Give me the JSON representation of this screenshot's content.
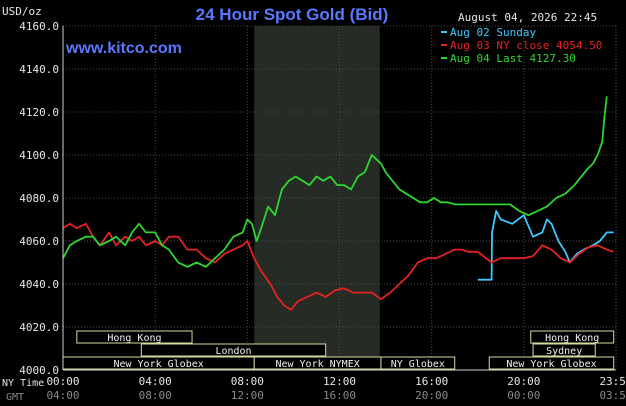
{
  "chart_data": {
    "type": "line",
    "title": "24 Hour Spot Gold (Bid)",
    "watermark": "www.kitco.com",
    "timestamp": "August 04, 2026 22:45",
    "ylabel": "USD/oz",
    "ylim": [
      4000,
      4160
    ],
    "yticks": [
      "4160.0",
      "4140.0",
      "4120.0",
      "4100.0",
      "4080.0",
      "4060.0",
      "4040.0",
      "4020.0",
      "4000.0"
    ],
    "xlim": [
      0,
      24
    ],
    "xticks_ny": [
      "00:00",
      "04:00",
      "08:00",
      "12:00",
      "16:00",
      "20:00",
      "23:59"
    ],
    "xticks_gmt": [
      "04:00",
      "08:00",
      "12:00",
      "16:00",
      "20:00",
      "00:00",
      "03:59"
    ],
    "x_row_labels": {
      "ny": "NY Time",
      "gmt": "GMT"
    },
    "shaded_range": [
      8.3,
      13.75
    ],
    "legend": [
      {
        "label": "Aug 02 Sunday",
        "color": "#3ec8ff"
      },
      {
        "label": "Aug 03 NY close 4054.50",
        "color": "#e52222"
      },
      {
        "label": "Aug 04 Last 4127.30",
        "color": "#2fd52f"
      }
    ],
    "series": [
      {
        "name": "Aug 02 Sunday",
        "color": "#3ec8ff",
        "x": [
          18.0,
          18.6,
          18.62,
          18.8,
          19.0,
          19.5,
          20.0,
          20.4,
          20.8,
          21.0,
          21.2,
          21.5,
          21.8,
          22.0,
          22.3,
          22.6,
          23.0,
          23.3,
          23.6,
          23.9
        ],
        "y": [
          4042,
          4042,
          4064,
          4074,
          4070,
          4068,
          4072,
          4062,
          4064,
          4070,
          4068,
          4060,
          4055,
          4050,
          4054,
          4056,
          4058,
          4060,
          4064,
          4064
        ]
      },
      {
        "name": "Aug 03 NY close 4054.50",
        "color": "#e52222",
        "x": [
          0.0,
          0.3,
          0.6,
          1.0,
          1.3,
          1.6,
          2.0,
          2.3,
          2.7,
          3.0,
          3.3,
          3.6,
          4.0,
          4.3,
          4.6,
          5.0,
          5.4,
          5.8,
          6.2,
          6.6,
          7.0,
          7.4,
          7.8,
          8.0,
          8.3,
          8.6,
          9.0,
          9.3,
          9.6,
          9.9,
          10.2,
          10.6,
          11.0,
          11.4,
          11.8,
          12.2,
          12.6,
          13.0,
          13.4,
          13.8,
          14.2,
          14.6,
          15.0,
          15.4,
          15.8,
          16.2,
          16.6,
          17.0,
          17.3,
          17.6,
          18.0,
          18.6,
          19.0,
          19.5,
          20.0,
          20.4,
          20.8,
          21.2,
          21.6,
          22.0,
          22.4,
          22.8,
          23.2,
          23.6,
          23.9
        ],
        "y": [
          4066,
          4068,
          4066,
          4068,
          4062,
          4058,
          4064,
          4058,
          4062,
          4060,
          4062,
          4058,
          4060,
          4058,
          4062,
          4062,
          4056,
          4056,
          4052,
          4050,
          4054,
          4056,
          4058,
          4060,
          4052,
          4046,
          4040,
          4034,
          4030,
          4028,
          4032,
          4034,
          4036,
          4034,
          4037,
          4038,
          4036,
          4036,
          4036,
          4033,
          4036,
          4040,
          4044,
          4050,
          4052,
          4052,
          4054,
          4056,
          4056,
          4055,
          4055,
          4050,
          4052,
          4052,
          4052,
          4053,
          4058,
          4056,
          4052,
          4050,
          4054,
          4057,
          4058,
          4056,
          4055
        ]
      },
      {
        "name": "Aug 04 Last 4127.30",
        "color": "#2fd52f",
        "x": [
          0.0,
          0.3,
          0.6,
          1.0,
          1.3,
          1.6,
          2.0,
          2.3,
          2.7,
          3.0,
          3.3,
          3.6,
          4.0,
          4.3,
          4.6,
          5.0,
          5.4,
          5.8,
          6.2,
          6.6,
          7.0,
          7.4,
          7.8,
          8.0,
          8.2,
          8.4,
          8.6,
          8.9,
          9.2,
          9.5,
          9.8,
          10.1,
          10.4,
          10.7,
          11.0,
          11.3,
          11.6,
          11.9,
          12.2,
          12.5,
          12.8,
          13.1,
          13.4,
          13.6,
          13.8,
          14.0,
          14.3,
          14.6,
          14.9,
          15.2,
          15.5,
          15.8,
          16.1,
          16.4,
          16.7,
          17.0,
          17.4,
          17.8,
          18.2,
          18.6,
          19.0,
          19.4,
          19.8,
          20.2,
          20.6,
          21.0,
          21.4,
          21.8,
          22.2,
          22.5,
          22.8,
          23.0,
          23.2,
          23.4,
          23.5,
          23.6
        ],
        "y": [
          4052,
          4058,
          4060,
          4062,
          4062,
          4058,
          4060,
          4062,
          4058,
          4064,
          4068,
          4064,
          4064,
          4058,
          4056,
          4050,
          4048,
          4050,
          4048,
          4052,
          4056,
          4062,
          4064,
          4070,
          4068,
          4060,
          4066,
          4076,
          4072,
          4084,
          4088,
          4090,
          4088,
          4086,
          4090,
          4088,
          4090,
          4086,
          4086,
          4084,
          4090,
          4092,
          4100,
          4098,
          4096,
          4092,
          4088,
          4084,
          4082,
          4080,
          4078,
          4078,
          4080,
          4078,
          4078,
          4077,
          4077,
          4077,
          4077,
          4077,
          4077,
          4077,
          4074,
          4072,
          4074,
          4076,
          4080,
          4082,
          4086,
          4090,
          4094,
          4096,
          4100,
          4106,
          4118,
          4127.3
        ]
      }
    ],
    "sessions": {
      "row1": [
        {
          "label": "Hong Kong",
          "start": 0.6,
          "end": 5.6
        },
        {
          "label": "Hong Kong",
          "start": 20.3,
          "end": 23.9
        }
      ],
      "row2": [
        {
          "label": "London",
          "start": 3.4,
          "end": 11.4
        },
        {
          "label": "Sydney",
          "start": 20.4,
          "end": 23.1
        }
      ],
      "row3": [
        {
          "label": "New York Globex",
          "start": 0.0,
          "end": 8.3
        },
        {
          "label": "New York NYMEX",
          "start": 8.3,
          "end": 13.8
        },
        {
          "label": "NY Globex",
          "start": 13.8,
          "end": 17.0
        },
        {
          "label": "New York Globex",
          "start": 18.5,
          "end": 23.9
        }
      ]
    }
  }
}
